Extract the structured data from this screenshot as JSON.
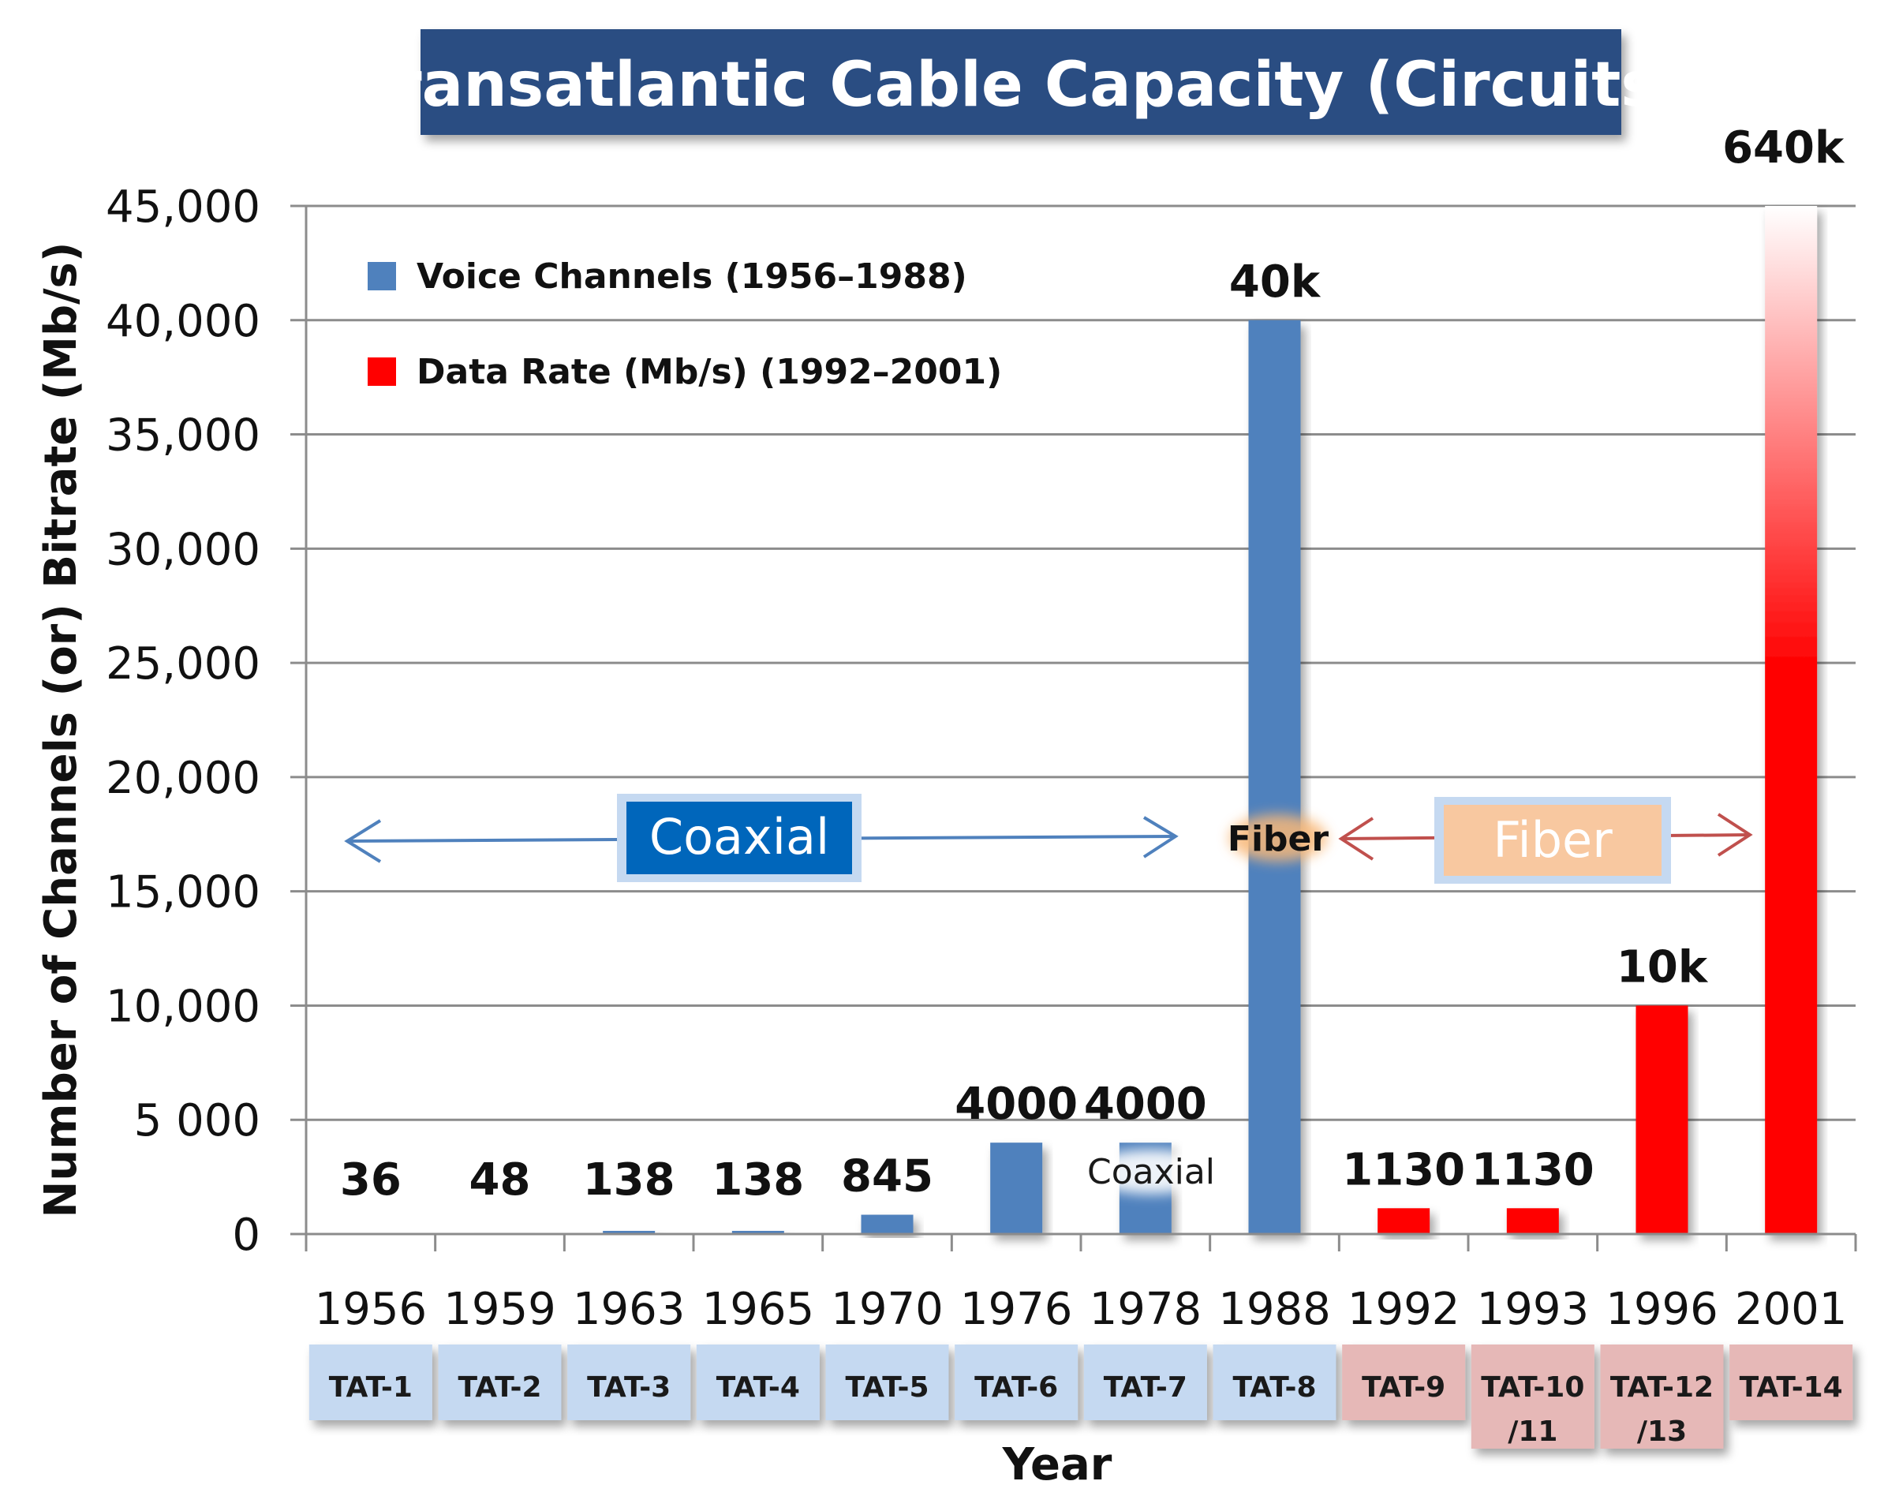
{
  "chart_data": {
    "type": "bar",
    "title": "Transatlantic Cable Capacity (Circuits)",
    "xlabel": "Year",
    "ylabel": "Number of Channels (or) Bitrate (Mb/s)",
    "ylim": [
      0,
      45000
    ],
    "yticks": [
      0,
      5000,
      10000,
      15000,
      20000,
      25000,
      30000,
      35000,
      40000,
      45000
    ],
    "ytick_labels": [
      "0",
      "5 000",
      "10,000",
      "15,000",
      "20,000",
      "25,000",
      "30,000",
      "35,000",
      "40,000",
      "45,000"
    ],
    "grid": true,
    "legend_position": "top-left",
    "categories": [
      "1956",
      "1959",
      "1963",
      "1965",
      "1970",
      "1976",
      "1978",
      "1988",
      "1992",
      "1993",
      "1996",
      "2001"
    ],
    "values": [
      36,
      48,
      138,
      138,
      845,
      4000,
      4000,
      40000,
      1130,
      1130,
      10000,
      640000
    ],
    "value_labels": [
      "36",
      "48",
      "138",
      "138",
      "845",
      "4000",
      "4000",
      "40k",
      "1130",
      "1130",
      "10k",
      "640k"
    ],
    "series_of_bar": [
      "voice",
      "voice",
      "voice",
      "voice",
      "voice",
      "voice",
      "voice",
      "voice",
      "data",
      "data",
      "data",
      "data"
    ],
    "series": [
      {
        "key": "voice",
        "name": "Voice Channels (1956–1988)",
        "color": "#4f81bd"
      },
      {
        "key": "data",
        "name": "Data Rate  (Mb/s) (1992–2001)",
        "color": "#ff0000"
      }
    ],
    "cables": [
      {
        "lines": [
          "TAT-1"
        ]
      },
      {
        "lines": [
          "TAT-2"
        ]
      },
      {
        "lines": [
          "TAT-3"
        ]
      },
      {
        "lines": [
          "TAT-4"
        ]
      },
      {
        "lines": [
          "TAT-5"
        ]
      },
      {
        "lines": [
          "TAT-6"
        ]
      },
      {
        "lines": [
          "TAT-7"
        ]
      },
      {
        "lines": [
          "TAT-8"
        ]
      },
      {
        "lines": [
          "TAT-9"
        ]
      },
      {
        "lines": [
          "TAT-10",
          "/11"
        ]
      },
      {
        "lines": [
          "TAT-12",
          "/13"
        ]
      },
      {
        "lines": [
          "TAT-14"
        ]
      }
    ],
    "annotations": {
      "coaxial_span": "Coaxial",
      "fiber_span": "Fiber",
      "fiber_on_bar": "Fiber",
      "coaxial_on_bar": "Coaxial"
    },
    "colors": {
      "title_bg": "#2a4e82",
      "coaxial_box": "#0066bb",
      "fiber_box": "#f8c8a0",
      "arrow_blue": "#4f81bd",
      "arrow_red": "#c0504d",
      "voice_cable_bg": "#c5d9f1",
      "data_cable_bg": "#e6b8b7"
    }
  }
}
